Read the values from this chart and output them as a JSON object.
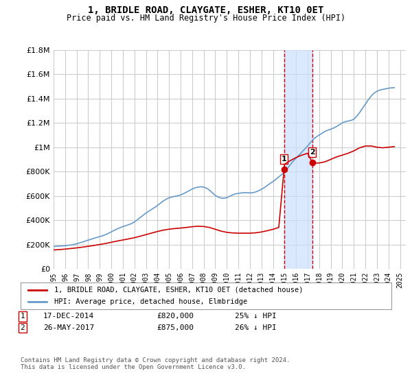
{
  "title": "1, BRIDLE ROAD, CLAYGATE, ESHER, KT10 0ET",
  "subtitle": "Price paid vs. HM Land Registry's House Price Index (HPI)",
  "legend_label_red": "1, BRIDLE ROAD, CLAYGATE, ESHER, KT10 0ET (detached house)",
  "legend_label_blue": "HPI: Average price, detached house, Elmbridge",
  "footer": "Contains HM Land Registry data © Crown copyright and database right 2024.\nThis data is licensed under the Open Government Licence v3.0.",
  "transactions": [
    {
      "num": "1",
      "date": "17-DEC-2014",
      "price": "£820,000",
      "hpi": "25% ↓ HPI"
    },
    {
      "num": "2",
      "date": "26-MAY-2017",
      "price": "£875,000",
      "hpi": "26% ↓ HPI"
    }
  ],
  "sale1_year": 2014.96,
  "sale1_price": 820000,
  "sale2_year": 2017.4,
  "sale2_price": 875000,
  "ylim": [
    0,
    1800000
  ],
  "xlim_start": 1995,
  "xlim_end": 2025.5,
  "red_color": "#cc0000",
  "blue_color": "#6699cc",
  "shade_color": "#cce0ff",
  "background_color": "#ffffff",
  "grid_color": "#cccccc",
  "hpi_years": [
    1995,
    1995.25,
    1995.5,
    1995.75,
    1996,
    1996.25,
    1996.5,
    1996.75,
    1997,
    1997.25,
    1997.5,
    1997.75,
    1998,
    1998.25,
    1998.5,
    1998.75,
    1999,
    1999.25,
    1999.5,
    1999.75,
    2000,
    2000.25,
    2000.5,
    2000.75,
    2001,
    2001.25,
    2001.5,
    2001.75,
    2002,
    2002.25,
    2002.5,
    2002.75,
    2003,
    2003.25,
    2003.5,
    2003.75,
    2004,
    2004.25,
    2004.5,
    2004.75,
    2005,
    2005.25,
    2005.5,
    2005.75,
    2006,
    2006.25,
    2006.5,
    2006.75,
    2007,
    2007.25,
    2007.5,
    2007.75,
    2008,
    2008.25,
    2008.5,
    2008.75,
    2009,
    2009.25,
    2009.5,
    2009.75,
    2010,
    2010.25,
    2010.5,
    2010.75,
    2011,
    2011.25,
    2011.5,
    2011.75,
    2012,
    2012.25,
    2012.5,
    2012.75,
    2013,
    2013.25,
    2013.5,
    2013.75,
    2014,
    2014.25,
    2014.5,
    2014.75,
    2015,
    2015.25,
    2015.5,
    2015.75,
    2016,
    2016.25,
    2016.5,
    2016.75,
    2017,
    2017.25,
    2017.5,
    2017.75,
    2018,
    2018.25,
    2018.5,
    2018.75,
    2019,
    2019.25,
    2019.5,
    2019.75,
    2020,
    2020.25,
    2020.5,
    2020.75,
    2021,
    2021.25,
    2021.5,
    2021.75,
    2022,
    2022.25,
    2022.5,
    2022.75,
    2023,
    2023.25,
    2023.5,
    2023.75,
    2024,
    2024.25,
    2024.5
  ],
  "hpi_values": [
    183000,
    185000,
    187000,
    188000,
    190000,
    193000,
    196000,
    200000,
    206000,
    213000,
    220000,
    228000,
    236000,
    243000,
    251000,
    258000,
    265000,
    272000,
    281000,
    292000,
    304000,
    316000,
    328000,
    338000,
    347000,
    355000,
    363000,
    372000,
    385000,
    403000,
    422000,
    440000,
    458000,
    474000,
    489000,
    504000,
    520000,
    540000,
    558000,
    572000,
    584000,
    591000,
    596000,
    600000,
    608000,
    618000,
    630000,
    643000,
    656000,
    666000,
    672000,
    674000,
    672000,
    663000,
    647000,
    625000,
    604000,
    590000,
    582000,
    580000,
    585000,
    596000,
    608000,
    616000,
    620000,
    624000,
    626000,
    626000,
    624000,
    626000,
    632000,
    642000,
    654000,
    668000,
    685000,
    702000,
    718000,
    736000,
    756000,
    775000,
    798000,
    826000,
    856000,
    886000,
    910000,
    935000,
    960000,
    985000,
    1010000,
    1040000,
    1065000,
    1085000,
    1100000,
    1115000,
    1130000,
    1140000,
    1148000,
    1158000,
    1170000,
    1185000,
    1200000,
    1210000,
    1215000,
    1220000,
    1230000,
    1255000,
    1285000,
    1320000,
    1355000,
    1390000,
    1420000,
    1445000,
    1460000,
    1470000,
    1475000,
    1480000,
    1485000,
    1488000,
    1490000
  ],
  "red_years": [
    1995,
    1995.5,
    1996,
    1996.5,
    1997,
    1997.5,
    1998,
    1998.5,
    1999,
    1999.5,
    2000,
    2000.5,
    2001,
    2001.5,
    2002,
    2002.5,
    2003,
    2003.5,
    2004,
    2004.5,
    2005,
    2005.5,
    2006,
    2006.5,
    2007,
    2007.5,
    2008,
    2008.5,
    2009,
    2009.5,
    2010,
    2010.5,
    2011,
    2011.5,
    2012,
    2012.5,
    2013,
    2013.5,
    2014,
    2014.5,
    2014.96,
    2015,
    2015.5,
    2016,
    2016.5,
    2017,
    2017.4,
    2017.5,
    2018,
    2018.5,
    2019,
    2019.5,
    2020,
    2020.5,
    2021,
    2021.5,
    2022,
    2022.5,
    2023,
    2023.5,
    2024,
    2024.5
  ],
  "red_values": [
    155000,
    158000,
    162000,
    167000,
    172000,
    178000,
    185000,
    192000,
    200000,
    208000,
    218000,
    228000,
    237000,
    246000,
    256000,
    268000,
    281000,
    294000,
    307000,
    318000,
    326000,
    331000,
    335000,
    340000,
    346000,
    350000,
    348000,
    340000,
    325000,
    310000,
    300000,
    295000,
    293000,
    293000,
    293000,
    296000,
    303000,
    313000,
    325000,
    340000,
    820000,
    860000,
    890000,
    915000,
    935000,
    950000,
    875000,
    870000,
    870000,
    880000,
    900000,
    920000,
    935000,
    950000,
    970000,
    995000,
    1010000,
    1010000,
    1000000,
    995000,
    1000000,
    1005000
  ]
}
